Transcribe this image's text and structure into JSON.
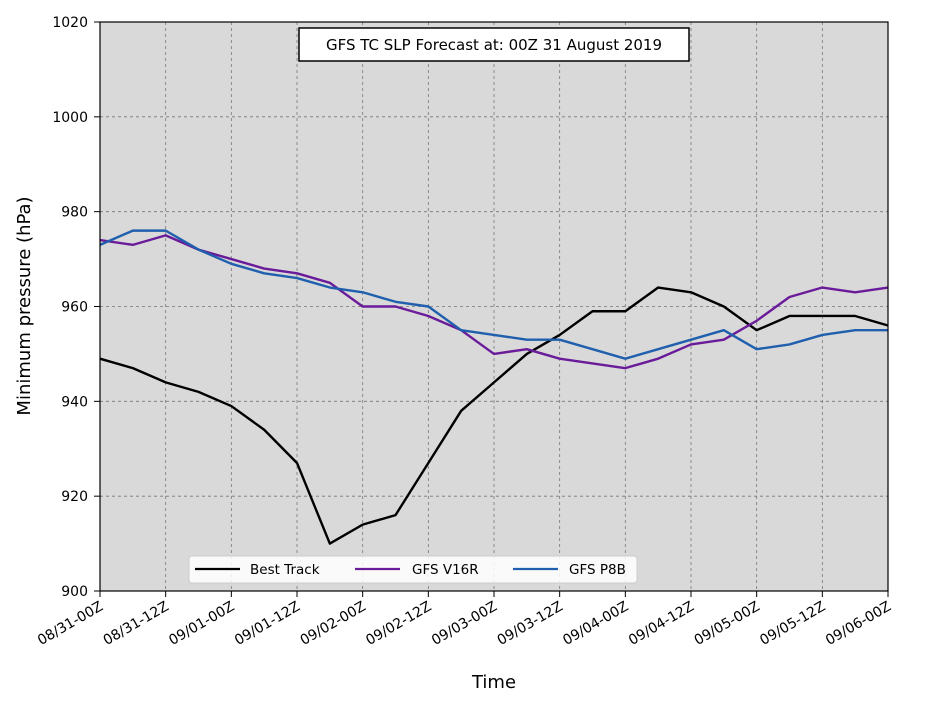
{
  "chart_data": {
    "type": "line",
    "title": "GFS TC SLP Forecast at: 00Z 31 August 2019",
    "xlabel": "Time",
    "ylabel": "Minimum pressure (hPa)",
    "ylim": [
      900,
      1020
    ],
    "yticks": [
      900,
      920,
      940,
      960,
      980,
      1000,
      1020
    ],
    "xticks": [
      "08/31-00Z",
      "08/31-12Z",
      "09/01-00Z",
      "09/01-12Z",
      "09/02-00Z",
      "09/02-12Z",
      "09/03-00Z",
      "09/03-12Z",
      "09/04-00Z",
      "09/04-12Z",
      "09/05-00Z",
      "09/05-12Z",
      "09/06-00Z"
    ],
    "x_hours": [
      0,
      6,
      12,
      18,
      24,
      30,
      36,
      42,
      48,
      54,
      60,
      66,
      72,
      78,
      84,
      90,
      96,
      102,
      108,
      114,
      120,
      126,
      132,
      138,
      144
    ],
    "grid": true,
    "legend_position": "bottom-left",
    "series": [
      {
        "name": "Best Track",
        "color": "#000000",
        "values": [
          949,
          947,
          944,
          942,
          939,
          934,
          927,
          910,
          914,
          916,
          927,
          938,
          944,
          950,
          954,
          959,
          959,
          964,
          963,
          960,
          955,
          958,
          958,
          958,
          956
        ]
      },
      {
        "name": "GFS V16R",
        "color": "#6a1b9a",
        "values": [
          974,
          973,
          975,
          972,
          970,
          968,
          967,
          965,
          960,
          960,
          958,
          955,
          950,
          951,
          949,
          948,
          947,
          949,
          952,
          953,
          957,
          962,
          964,
          963,
          964
        ]
      },
      {
        "name": "GFS P8B",
        "color": "#1f5fad",
        "values": [
          973,
          976,
          976,
          972,
          969,
          967,
          966,
          964,
          963,
          961,
          960,
          955,
          954,
          953,
          953,
          951,
          949,
          951,
          953,
          955,
          951,
          952,
          954,
          955,
          955
        ]
      }
    ]
  }
}
